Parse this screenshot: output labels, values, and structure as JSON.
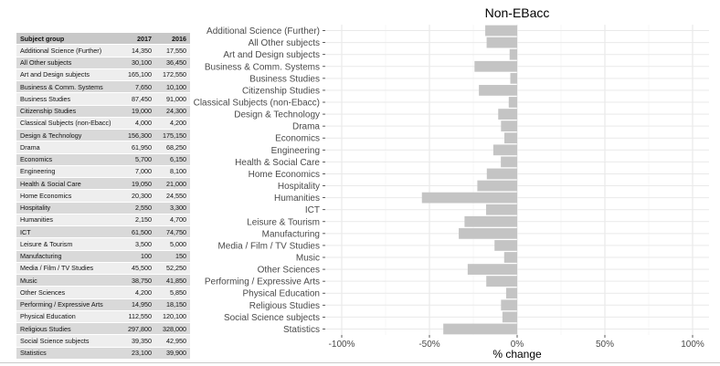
{
  "table": {
    "headers": [
      "Subject group",
      "2017",
      "2016"
    ],
    "rows": [
      [
        "Additional Science (Further)",
        "14,350",
        "17,550"
      ],
      [
        "All Other subjects",
        "30,100",
        "36,450"
      ],
      [
        "Art and Design subjects",
        "165,100",
        "172,550"
      ],
      [
        "Business & Comm. Systems",
        "7,650",
        "10,100"
      ],
      [
        "Business Studies",
        "87,450",
        "91,000"
      ],
      [
        "Citizenship Studies",
        "19,000",
        "24,300"
      ],
      [
        "Classical Subjects (non-Ebacc)",
        "4,000",
        "4,200"
      ],
      [
        "Design & Technology",
        "156,300",
        "175,150"
      ],
      [
        "Drama",
        "61,950",
        "68,250"
      ],
      [
        "Economics",
        "5,700",
        "6,150"
      ],
      [
        "Engineering",
        "7,000",
        "8,100"
      ],
      [
        "Health & Social Care",
        "19,050",
        "21,000"
      ],
      [
        "Home Economics",
        "20,300",
        "24,550"
      ],
      [
        "Hospitality",
        "2,550",
        "3,300"
      ],
      [
        "Humanities",
        "2,150",
        "4,700"
      ],
      [
        "ICT",
        "61,500",
        "74,750"
      ],
      [
        "Leisure & Tourism",
        "3,500",
        "5,000"
      ],
      [
        "Manufacturing",
        "100",
        "150"
      ],
      [
        "Media / Film / TV Studies",
        "45,500",
        "52,250"
      ],
      [
        "Music",
        "38,750",
        "41,850"
      ],
      [
        "Other Sciences",
        "4,200",
        "5,850"
      ],
      [
        "Performing / Expressive Arts",
        "14,950",
        "18,150"
      ],
      [
        "Physical Education",
        "112,550",
        "120,100"
      ],
      [
        "Religious Studies",
        "297,800",
        "328,000"
      ],
      [
        "Social Science subjects",
        "39,350",
        "42,950"
      ],
      [
        "Statistics",
        "23,100",
        "39,900"
      ]
    ]
  },
  "chart_data": {
    "type": "bar",
    "orientation": "horizontal",
    "title": "Non-EBacc",
    "xlabel": "% change",
    "ylabel": "",
    "xlim": [
      -100,
      100
    ],
    "x_ticks": [
      -100,
      -50,
      0,
      50,
      100
    ],
    "x_tick_labels": [
      "-100%",
      "-50%",
      "0%",
      "50%",
      "100%"
    ],
    "grid": true,
    "bar_color": "#c4c4c4",
    "categories": [
      "Additional Science (Further)",
      "All Other subjects",
      "Art and Design subjects",
      "Business & Comm. Systems",
      "Business Studies",
      "Citizenship Studies",
      "Classical Subjects (non-Ebacc)",
      "Design & Technology",
      "Drama",
      "Economics",
      "Engineering",
      "Health & Social Care",
      "Home Economics",
      "Hospitality",
      "Humanities",
      "ICT",
      "Leisure & Tourism",
      "Manufacturing",
      "Media / Film / TV Studies",
      "Music",
      "Other Sciences",
      "Performing / Expressive Arts",
      "Physical Education",
      "Religious Studies",
      "Social Science subjects",
      "Statistics"
    ],
    "values": [
      -18.2,
      -17.4,
      -4.3,
      -24.3,
      -3.9,
      -21.8,
      -4.8,
      -10.8,
      -9.2,
      -7.3,
      -13.6,
      -9.3,
      -17.3,
      -22.7,
      -54.3,
      -17.7,
      -30.0,
      -33.3,
      -12.9,
      -7.4,
      -28.2,
      -17.6,
      -6.3,
      -9.2,
      -8.4,
      -42.1
    ]
  }
}
